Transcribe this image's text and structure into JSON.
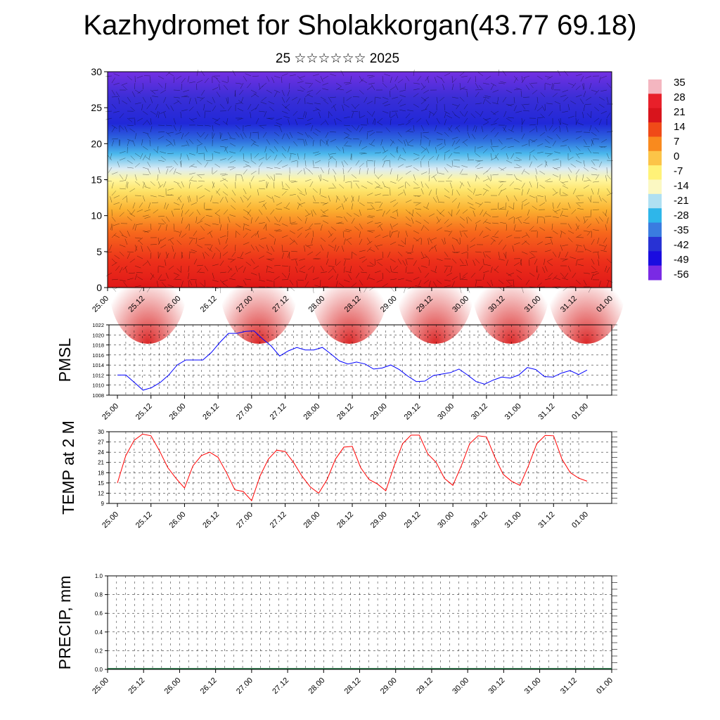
{
  "title": "Kazhydromet for Sholakkorgan(43.77 69.18)",
  "subtitle": "25 ☆☆☆☆☆☆ 2025",
  "time_ticks": [
    "25.00",
    "25.12",
    "26.00",
    "26.12",
    "27.00",
    "27.12",
    "28.00",
    "28.12",
    "29.00",
    "29.12",
    "30.00",
    "30.12",
    "31.00",
    "31.12",
    "01.00"
  ],
  "colorbar": {
    "labels": [
      "35",
      "28",
      "21",
      "14",
      "7",
      "0",
      "-7",
      "-14",
      "-21",
      "-28",
      "-35",
      "-42",
      "-49",
      "-56"
    ],
    "colors": [
      "#f4b6c0",
      "#e8202a",
      "#d8141c",
      "#f04a18",
      "#f98a1e",
      "#fcc448",
      "#fff278",
      "#fbf8c2",
      "#b0e0f2",
      "#2eb6ea",
      "#3a7ce0",
      "#2832d4",
      "#1a0ce0",
      "#7a2ae4"
    ]
  },
  "chart_data": [
    {
      "type": "heatmap",
      "title": "",
      "xlabel": "",
      "ylabel": "",
      "ylim": [
        0,
        30
      ],
      "yticks": [
        "0",
        "5",
        "10",
        "15",
        "20",
        "25",
        "30"
      ],
      "description_levels": [
        {
          "from": 0,
          "to": 10,
          "value_range": [
            7,
            35
          ]
        },
        {
          "from": 10,
          "to": 15,
          "value_range": [
            -14,
            7
          ]
        },
        {
          "from": 15,
          "to": 20,
          "value_range": [
            -35,
            -14
          ]
        },
        {
          "from": 20,
          "to": 27,
          "value_range": [
            -56,
            -35
          ]
        },
        {
          "from": 27,
          "to": 30,
          "value_range": [
            -56,
            -49
          ]
        }
      ]
    },
    {
      "type": "line",
      "title": "",
      "ylabel": "PMSL",
      "ylim": [
        1008,
        1022
      ],
      "yticks": [
        "1008",
        "1010",
        "1012",
        "1014",
        "1016",
        "1018",
        "1020",
        "1022"
      ],
      "series": [
        {
          "color": "#0000ff",
          "values": [
            1012,
            1012,
            1010.5,
            1009,
            1009.5,
            1010.5,
            1012,
            1014,
            1015,
            1015,
            1015,
            1016.5,
            1018.5,
            1020.3,
            1020.3,
            1020.7,
            1020.8,
            1019.2,
            1017.8,
            1015.8,
            1016.8,
            1017.5,
            1017,
            1017,
            1017.5,
            1016.2,
            1014.8,
            1014.2,
            1014.6,
            1014.2,
            1013.2,
            1013.4,
            1014,
            1013.1,
            1011.8,
            1010.7,
            1010.8,
            1011.9,
            1012.2,
            1012.5,
            1013.2,
            1012,
            1010.7,
            1010.2,
            1011,
            1011.6,
            1011.4,
            1012,
            1013.5,
            1013.1,
            1011.7,
            1011.6,
            1012.4,
            1012.9,
            1012.1,
            1013
          ]
        }
      ]
    },
    {
      "type": "line",
      "title": "",
      "ylabel": "TEMP at 2 M",
      "ylim": [
        9,
        30
      ],
      "yticks": [
        "9",
        "12",
        "15",
        "18",
        "21",
        "24",
        "27",
        "30"
      ],
      "series": [
        {
          "color": "#ff0000",
          "values": [
            15,
            23,
            27.5,
            29.3,
            28.8,
            24.5,
            19.5,
            16.3,
            13.5,
            20,
            23,
            24,
            22.5,
            18,
            13,
            12.5,
            9.8,
            17,
            22,
            24.6,
            24.2,
            21,
            17,
            13.8,
            12,
            16,
            22,
            25.5,
            25.7,
            19.5,
            16,
            14.7,
            12.7,
            20,
            26.5,
            29,
            29,
            23.5,
            21,
            16.3,
            14.3,
            20,
            26.5,
            28.8,
            28.5,
            22.5,
            17.5,
            15.5,
            14.3,
            20,
            26.5,
            28.9,
            28.8,
            22,
            18,
            16.4,
            15.5
          ]
        }
      ]
    },
    {
      "type": "bar",
      "title": "",
      "ylabel": "PRECIP, mm",
      "ylim": [
        0,
        1
      ],
      "yticks": [
        "0.0",
        "0.2",
        "0.4",
        "0.6",
        "0.8",
        "1.0"
      ],
      "values": []
    }
  ]
}
